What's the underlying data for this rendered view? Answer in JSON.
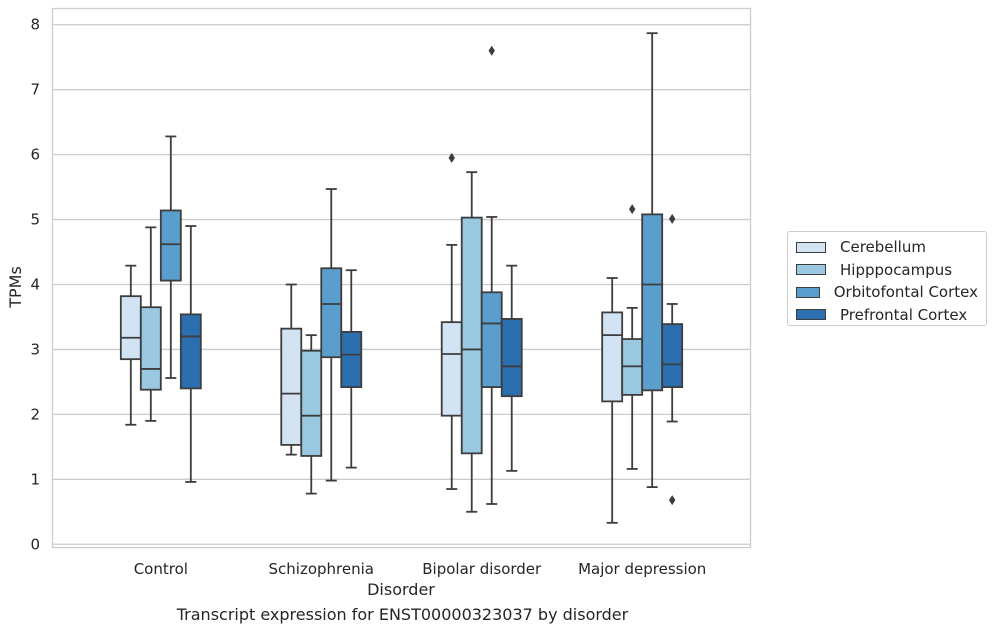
{
  "chart_data": {
    "type": "box",
    "title": "",
    "caption": "Transcript expression for ENST00000323037 by disorder",
    "xlabel": "Disorder",
    "ylabel": "TPMs",
    "ylim": [
      -0.05,
      8.25
    ],
    "yticks": [
      "0",
      "1",
      "2",
      "3",
      "4",
      "5",
      "6",
      "7",
      "8"
    ],
    "grid": "horizontal",
    "legend_position": "right",
    "categories": [
      "Control",
      "Schizophrenia",
      "Bipolar disorder",
      "Major depression"
    ],
    "series": [
      {
        "name": "Cerebellum",
        "color": "#d2e3f3",
        "boxes": [
          {
            "min": 1.84,
            "q1": 2.85,
            "median": 3.18,
            "q3": 3.82,
            "max": 4.29,
            "outliers": []
          },
          {
            "min": 1.38,
            "q1": 1.53,
            "median": 2.32,
            "q3": 3.32,
            "max": 4.0,
            "outliers": []
          },
          {
            "min": 0.85,
            "q1": 1.98,
            "median": 2.93,
            "q3": 3.42,
            "max": 4.61,
            "outliers": [
              5.95
            ]
          },
          {
            "min": 0.33,
            "q1": 2.2,
            "median": 3.22,
            "q3": 3.57,
            "max": 4.1,
            "outliers": []
          }
        ]
      },
      {
        "name": "Hipppocampus",
        "color": "#9ac8e0",
        "boxes": [
          {
            "min": 1.9,
            "q1": 2.38,
            "median": 2.7,
            "q3": 3.65,
            "max": 4.88,
            "outliers": []
          },
          {
            "min": 0.78,
            "q1": 1.36,
            "median": 1.98,
            "q3": 2.98,
            "max": 3.22,
            "outliers": []
          },
          {
            "min": 0.5,
            "q1": 1.4,
            "median": 3.0,
            "q3": 5.03,
            "max": 5.73,
            "outliers": []
          },
          {
            "min": 1.16,
            "q1": 2.3,
            "median": 2.74,
            "q3": 3.16,
            "max": 3.64,
            "outliers": [
              5.16
            ]
          }
        ]
      },
      {
        "name": "Orbitofontal Cortex",
        "color": "#5a9ecd",
        "boxes": [
          {
            "min": 2.56,
            "q1": 4.06,
            "median": 4.62,
            "q3": 5.14,
            "max": 6.28,
            "outliers": []
          },
          {
            "min": 0.98,
            "q1": 2.88,
            "median": 3.7,
            "q3": 4.25,
            "max": 5.47,
            "outliers": []
          },
          {
            "min": 0.62,
            "q1": 2.42,
            "median": 3.4,
            "q3": 3.88,
            "max": 5.04,
            "outliers": [
              7.6
            ]
          },
          {
            "min": 0.88,
            "q1": 2.37,
            "median": 4.0,
            "q3": 5.08,
            "max": 7.87,
            "outliers": []
          }
        ]
      },
      {
        "name": "Prefrontal Cortex",
        "color": "#2b6fae",
        "boxes": [
          {
            "min": 0.96,
            "q1": 2.4,
            "median": 3.2,
            "q3": 3.54,
            "max": 4.9,
            "outliers": []
          },
          {
            "min": 1.18,
            "q1": 2.42,
            "median": 2.92,
            "q3": 3.27,
            "max": 4.22,
            "outliers": []
          },
          {
            "min": 1.13,
            "q1": 2.28,
            "median": 2.74,
            "q3": 3.47,
            "max": 4.29,
            "outliers": []
          },
          {
            "min": 1.89,
            "q1": 2.42,
            "median": 2.77,
            "q3": 3.39,
            "max": 3.7,
            "outliers": [
              5.01,
              0.68
            ]
          }
        ]
      }
    ]
  }
}
